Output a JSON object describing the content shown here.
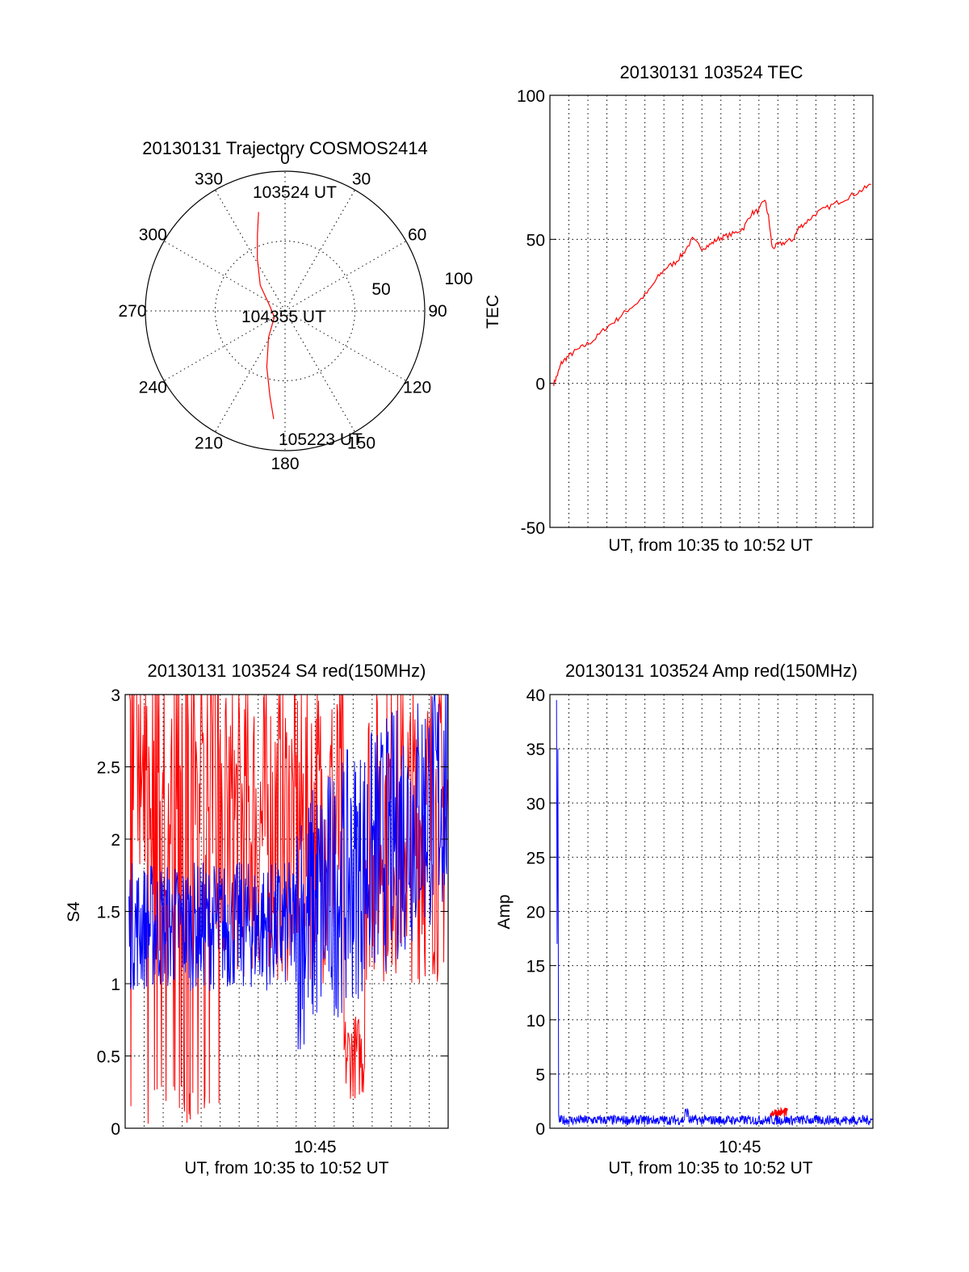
{
  "colors": {
    "red": "#ff0000",
    "blue": "#0000ff",
    "axis": "#000000"
  },
  "chart_data": [
    {
      "type": "polar",
      "title": "20130131 Trajectory COSMOS2414",
      "azimuth_labels": [
        "0",
        "30",
        "60",
        "90",
        "120",
        "150",
        "180",
        "210",
        "240",
        "270",
        "300",
        "330"
      ],
      "radial_labels": [
        "50",
        "100"
      ],
      "point_labels": [
        "103524 UT",
        "104355 UT",
        "105223 UT"
      ],
      "series": [
        {
          "color": "red",
          "points": [
            {
              "az": 345,
              "el": 24
            },
            {
              "az": 340,
              "el": 38
            },
            {
              "az": 332,
              "el": 52
            },
            {
              "az": 316,
              "el": 67
            },
            {
              "az": 286,
              "el": 80
            },
            {
              "az": 240,
              "el": 82
            },
            {
              "az": 212,
              "el": 70
            },
            {
              "az": 198,
              "el": 52
            },
            {
              "az": 190,
              "el": 34
            },
            {
              "az": 186,
              "el": 20
            }
          ]
        }
      ]
    },
    {
      "type": "line",
      "title": "20130131 103524 TEC",
      "xlabel": "UT, from 10:35 to 10:52 UT",
      "ylabel": "TEC",
      "ylim": [
        -50,
        100
      ],
      "yticks": [
        "-50",
        "0",
        "50",
        "100"
      ],
      "xlim": [
        0,
        17
      ],
      "grid": true,
      "series": [
        {
          "color": "red",
          "x": [
            0.2,
            0.4,
            0.6,
            0.9,
            1.3,
            1.8,
            2.3,
            2.9,
            3.5,
            4.0,
            4.6,
            5.2,
            5.7,
            6.1,
            6.6,
            7.0,
            7.5,
            8.0,
            8.4,
            8.8,
            9.2,
            9.7,
            10.2,
            10.6,
            11.0,
            11.3,
            11.5,
            11.7,
            12.0,
            12.4,
            12.8,
            13.1,
            13.5,
            14.0,
            14.6,
            15.2,
            15.8,
            16.4,
            16.9
          ],
          "y": [
            0,
            3,
            7,
            9,
            11,
            13,
            15,
            19,
            22,
            25,
            28,
            32,
            37,
            40,
            42,
            45,
            50,
            47,
            48,
            50,
            51,
            52,
            54,
            59,
            60,
            64,
            58,
            47,
            48,
            49,
            50,
            54,
            56,
            59,
            61,
            63,
            65,
            67,
            69
          ]
        }
      ]
    },
    {
      "type": "line",
      "title": "20130131 103524 S4 red(150MHz)",
      "xlabel": "UT, from 10:35 to 10:52 UT",
      "ylabel": "S4",
      "ylim": [
        0,
        3
      ],
      "yticks": [
        "0",
        "0.5",
        "1",
        "1.5",
        "2",
        "2.5",
        "3"
      ],
      "xlim": [
        0,
        17
      ],
      "xticks": [
        {
          "x": 10,
          "label": "10:45"
        }
      ],
      "grid": true,
      "series": [
        {
          "color": "red"
        },
        {
          "color": "blue"
        }
      ]
    },
    {
      "type": "line",
      "title": "20130131 103524 Amp red(150MHz)",
      "xlabel": "UT, from 10:35 to 10:52 UT",
      "ylabel": "Amp",
      "ylim": [
        0,
        40
      ],
      "yticks": [
        "0",
        "5",
        "10",
        "15",
        "20",
        "25",
        "30",
        "35",
        "40"
      ],
      "xlim": [
        0,
        17
      ],
      "xticks": [
        {
          "x": 10,
          "label": "10:45"
        }
      ],
      "grid": true,
      "series": [
        {
          "color": "red"
        },
        {
          "color": "blue"
        }
      ]
    }
  ]
}
